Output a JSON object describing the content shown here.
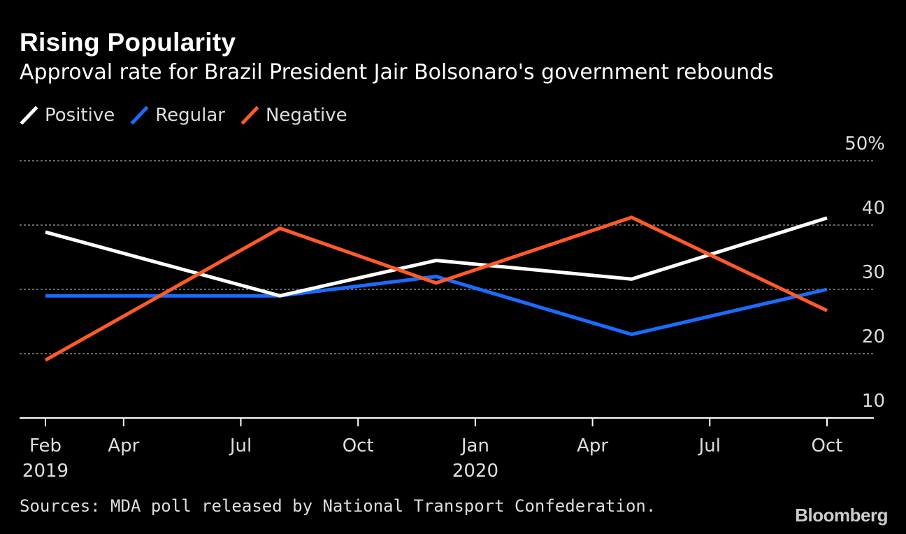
{
  "title": "Rising Popularity",
  "subtitle": "Approval rate for Brazil President Jair Bolsonaro's government rebounds",
  "source": "Sources: MDA poll released by National Transport Confederation.",
  "logo": "Bloomberg",
  "colors": {
    "background": "#000000",
    "Positive": "#ffffff",
    "Regular": "#1a6cff",
    "Negative": "#ff5a28"
  },
  "chart_data": {
    "type": "line",
    "x": [
      "2019-02",
      "2019-08",
      "2019-12",
      "2020-05",
      "2020-10"
    ],
    "series": [
      {
        "name": "Positive",
        "values": [
          38.9,
          29.0,
          34.5,
          31.6,
          41.1
        ]
      },
      {
        "name": "Regular",
        "values": [
          29.0,
          29.0,
          32.0,
          23.0,
          30.0
        ]
      },
      {
        "name": "Negative",
        "values": [
          19.0,
          39.5,
          31.0,
          41.2,
          26.7
        ]
      }
    ],
    "ylim": [
      10,
      50
    ],
    "yticks": [
      50,
      40,
      30,
      20,
      10
    ],
    "ytick_labels": [
      "50%",
      "40",
      "30",
      "20",
      "10"
    ],
    "xticks": [
      {
        "date": "2019-02",
        "label": "Feb",
        "year": "2019"
      },
      {
        "date": "2019-04",
        "label": "Apr",
        "year": ""
      },
      {
        "date": "2019-07",
        "label": "Jul",
        "year": ""
      },
      {
        "date": "2019-10",
        "label": "Oct",
        "year": ""
      },
      {
        "date": "2020-01",
        "label": "Jan",
        "year": "2020"
      },
      {
        "date": "2020-04",
        "label": "Apr",
        "year": ""
      },
      {
        "date": "2020-07",
        "label": "Jul",
        "year": ""
      },
      {
        "date": "2020-10",
        "label": "Oct",
        "year": ""
      }
    ],
    "grid": true,
    "legend_position": "top-left"
  }
}
